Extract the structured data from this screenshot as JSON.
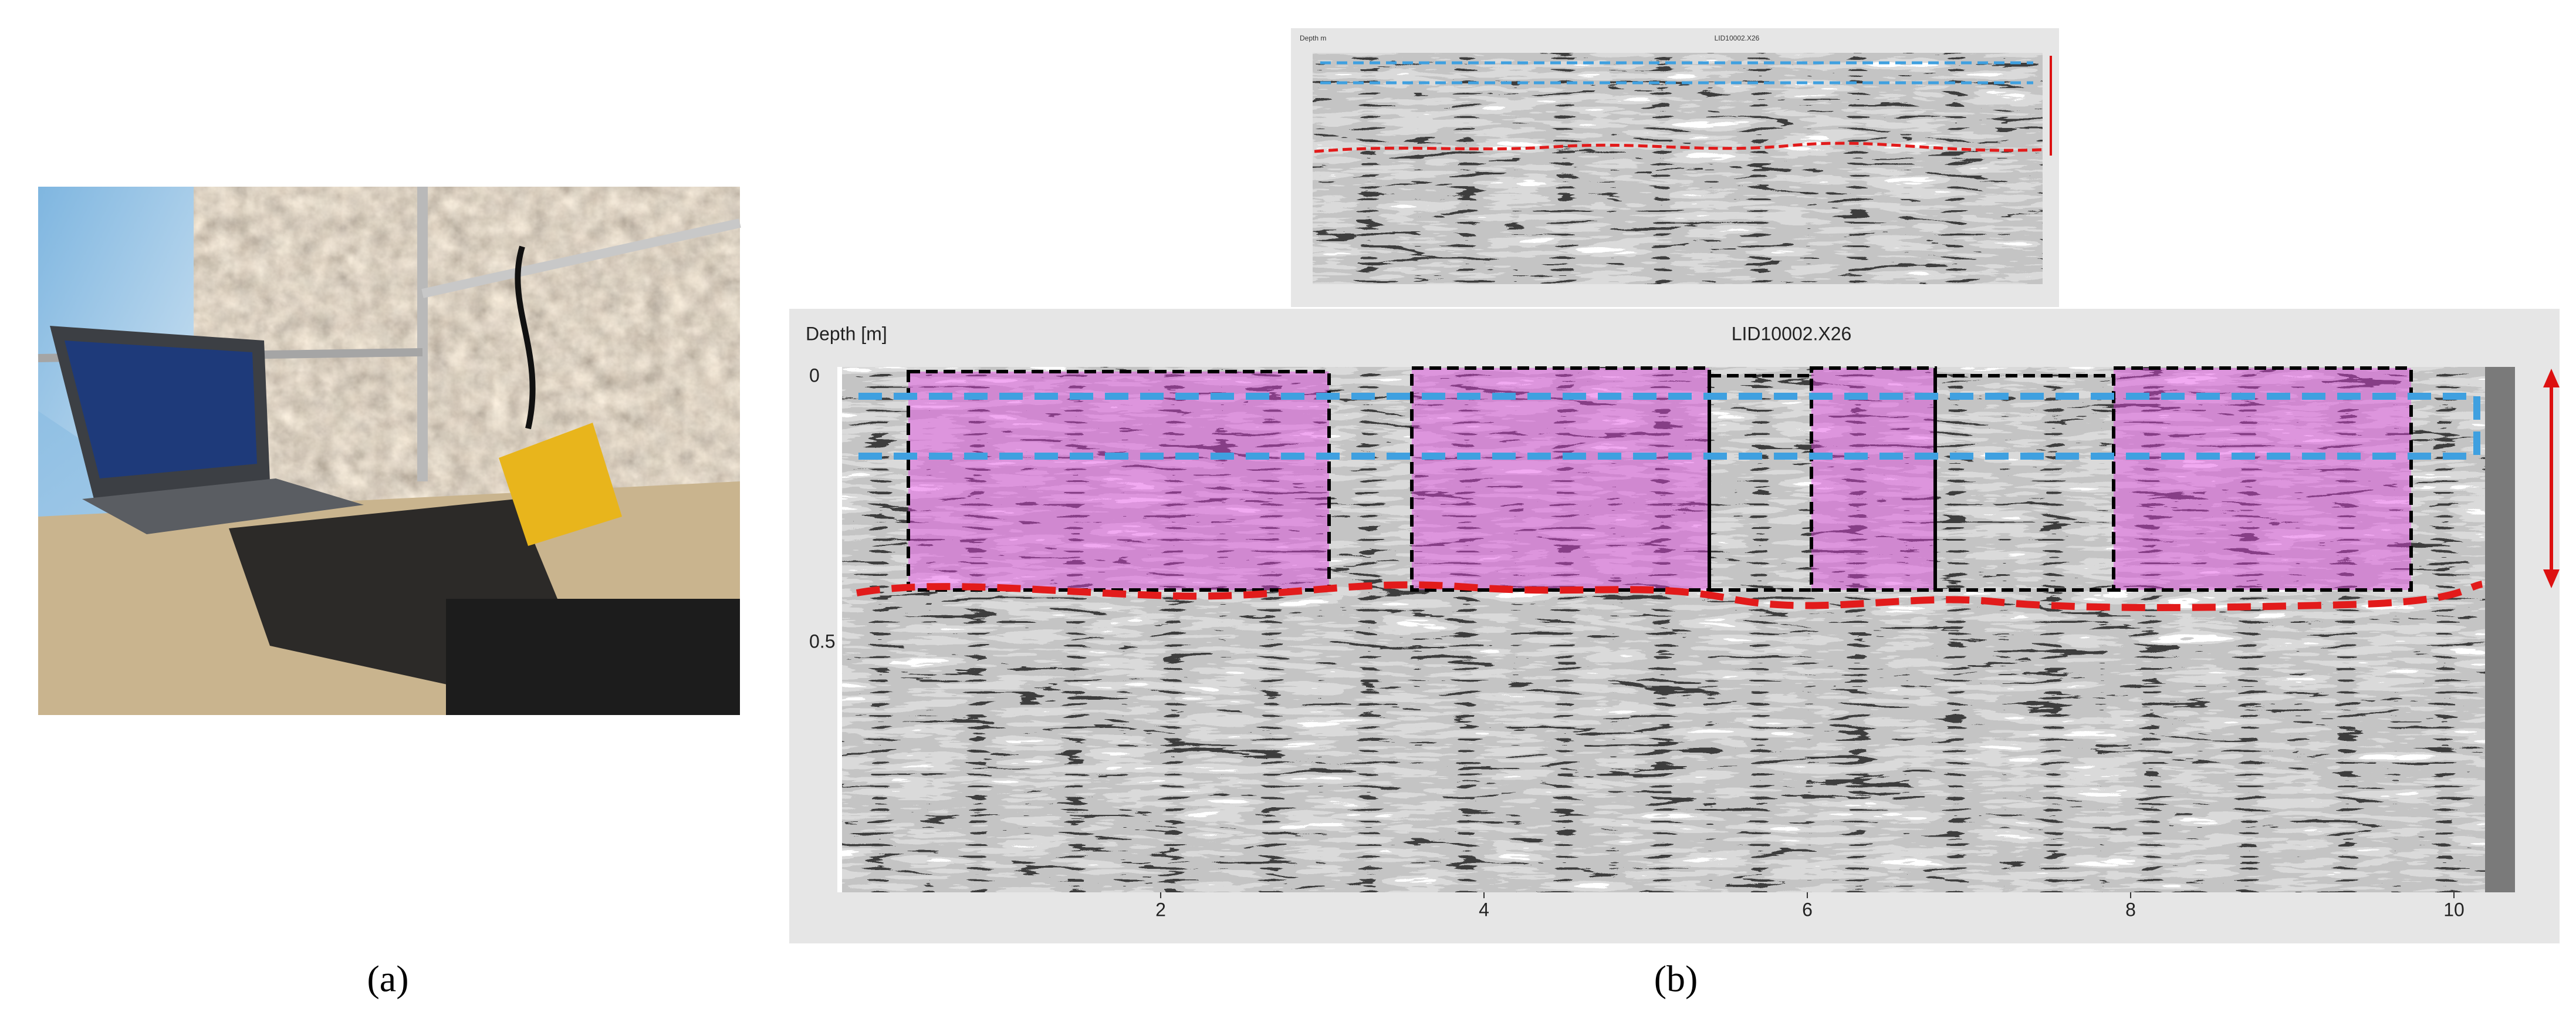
{
  "panel_a": {
    "label": "(a)"
  },
  "panel_b": {
    "label": "(b)",
    "inset": {
      "depth_label": "Depth m",
      "title": "LID10002.X26"
    },
    "main": {
      "depth_label": "Depth [m]",
      "title": "LID10002.X26",
      "y_ticks": [
        "0",
        "0.5"
      ],
      "x_ticks": [
        "2",
        "4",
        "6",
        "8",
        "10"
      ]
    }
  }
}
